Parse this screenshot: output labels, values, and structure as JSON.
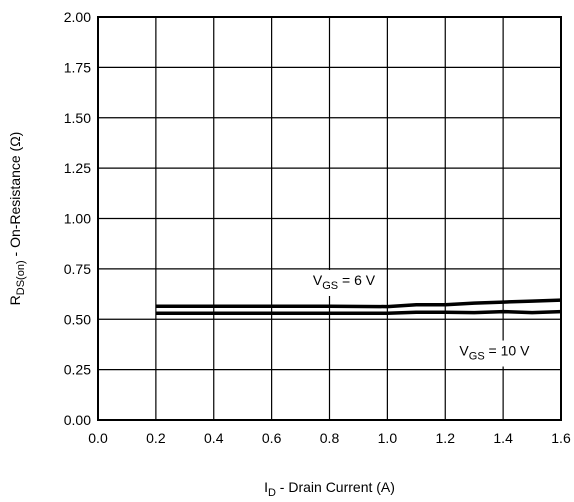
{
  "chart_data": {
    "type": "line",
    "xlabel_parts": {
      "main": "I",
      "sub": "D",
      "rest": " - Drain Current (A)"
    },
    "ylabel_parts": {
      "main": "R",
      "sub": "DS(on)",
      "rest": " - On-Resistance (Ω)"
    },
    "xlim": [
      0.0,
      1.6
    ],
    "ylim": [
      0.0,
      2.0
    ],
    "x_ticks": [
      0.0,
      0.2,
      0.4,
      0.6,
      0.8,
      1.0,
      1.2,
      1.4,
      1.6
    ],
    "x_tick_labels": [
      "0.0",
      "0.2",
      "0.4",
      "0.6",
      "0.8",
      "1.0",
      "1.2",
      "1.4",
      "1.6"
    ],
    "y_ticks": [
      0.0,
      0.25,
      0.5,
      0.75,
      1.0,
      1.25,
      1.5,
      1.75,
      2.0
    ],
    "y_tick_labels": [
      "0.00",
      "0.25",
      "0.50",
      "0.75",
      "1.00",
      "1.25",
      "1.50",
      "1.75",
      "2.00"
    ],
    "grid": true,
    "series": [
      {
        "x": [
          0.2,
          0.4,
          0.6,
          0.8,
          1.0,
          1.1,
          1.2,
          1.3,
          1.4,
          1.5,
          1.6
        ],
        "y": [
          0.565,
          0.565,
          0.565,
          0.565,
          0.563,
          0.572,
          0.572,
          0.58,
          0.585,
          0.59,
          0.595
        ]
      },
      {
        "x": [
          0.2,
          0.4,
          0.6,
          0.8,
          1.0,
          1.1,
          1.2,
          1.3,
          1.4,
          1.5,
          1.6
        ],
        "y": [
          0.53,
          0.53,
          0.53,
          0.53,
          0.53,
          0.535,
          0.535,
          0.533,
          0.538,
          0.533,
          0.538
        ]
      }
    ],
    "annotations": [
      {
        "main": "V",
        "sub": "GS",
        "rest": " = 6 V",
        "x": 0.85,
        "y": 0.67
      },
      {
        "main": "V",
        "sub": "GS",
        "rest": " = 10 V",
        "x": 1.37,
        "y": 0.32
      }
    ],
    "line_color": "#000000",
    "grid_color": "#000000"
  }
}
